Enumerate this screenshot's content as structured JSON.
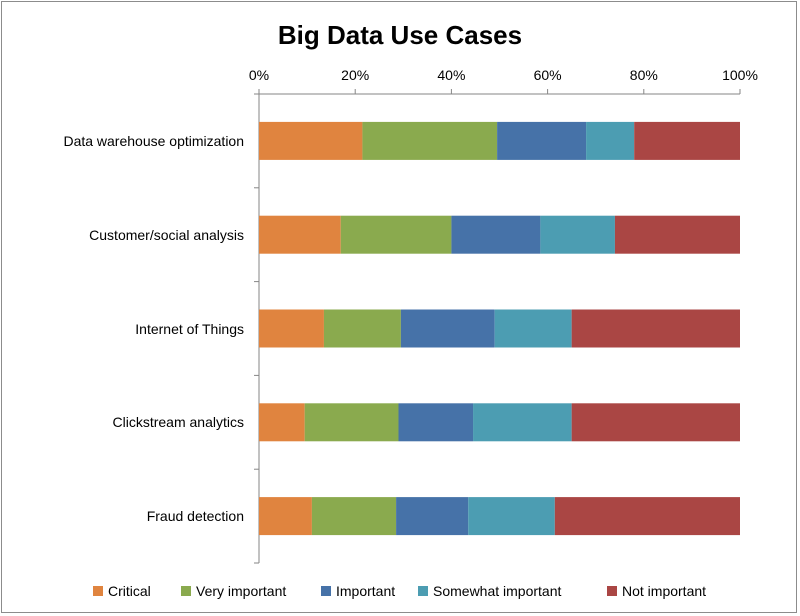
{
  "chart_data": {
    "type": "bar",
    "orientation": "horizontal",
    "stacked": "percent",
    "title": "Big Data Use Cases",
    "xlim": [
      0,
      100
    ],
    "x_ticks": [
      "0%",
      "20%",
      "40%",
      "60%",
      "80%",
      "100%"
    ],
    "categories": [
      "Data warehouse optimization",
      "Customer/social analysis",
      "Internet of Things",
      "Clickstream analytics",
      "Fraud detection"
    ],
    "series": [
      {
        "name": "Critical",
        "color": "#e0843f",
        "values": [
          21.5,
          17,
          13.5,
          9.5,
          11
        ]
      },
      {
        "name": "Very important",
        "color": "#8aaa4e",
        "values": [
          28,
          23,
          16,
          19.5,
          17.5
        ]
      },
      {
        "name": "Important",
        "color": "#4672a8",
        "values": [
          18.5,
          18.5,
          19.5,
          15.5,
          15
        ]
      },
      {
        "name": "Somewhat important",
        "color": "#4c9db2",
        "values": [
          10,
          15.5,
          16,
          20.5,
          18
        ]
      },
      {
        "name": "Not important",
        "color": "#aa4644",
        "values": [
          22,
          26,
          35,
          35,
          38.5
        ]
      }
    ],
    "grid": false,
    "legend": "bottom"
  }
}
